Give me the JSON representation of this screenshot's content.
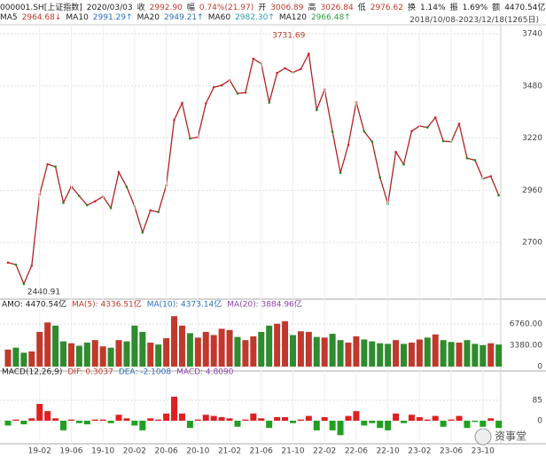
{
  "header": {
    "line1": [
      "000001.SH[上证指数]",
      "2020/03/03",
      "收",
      "2992.90",
      "幅",
      "0.74%(21.97)",
      "开",
      "3006.89",
      "高",
      "3026.84",
      "低",
      "2976.62",
      "换",
      "1.14%",
      "振",
      "1.69%",
      "额",
      "4470.54亿"
    ],
    "ma": [
      {
        "name": "MA5",
        "label": "2964.68↓",
        "color": "#c0392b"
      },
      {
        "name": "MA10",
        "label": "2991.29↑",
        "color": "#2c6fbb"
      },
      {
        "name": "MA20",
        "label": "2949.21↑",
        "color": "#2c6fbb"
      },
      {
        "name": "MA60",
        "label": "2982.30↑",
        "color": "#2c9bb0"
      },
      {
        "name": "MA120",
        "label": "2966.48↑",
        "color": "#2e9e3e"
      }
    ],
    "range": "2018/10/08-2023/12/18(1265日)",
    "watermark": "资事堂"
  },
  "chart_data": [
    {
      "type": "line",
      "color": "#b22222",
      "categories": [
        null,
        null,
        null,
        null,
        "19-02",
        null,
        null,
        null,
        "19-06",
        null,
        null,
        null,
        "19-10",
        null,
        null,
        null,
        "20-02",
        null,
        null,
        null,
        "20-06",
        null,
        null,
        null,
        "20-10",
        null,
        null,
        null,
        "21-02",
        null,
        null,
        null,
        "21-06",
        null,
        null,
        null,
        "21-10",
        null,
        null,
        null,
        "22-02",
        null,
        null,
        null,
        "22-06",
        null,
        null,
        null,
        "22-10",
        null,
        null,
        null,
        "23-02",
        null,
        null,
        null,
        "23-06",
        null,
        null,
        null,
        "23-10",
        null,
        null
      ],
      "values": [
        2600,
        2590,
        2494,
        2585,
        2940,
        3090,
        3078,
        2898,
        2979,
        2932,
        2886,
        2905,
        2929,
        2872,
        3050,
        2977,
        2880,
        2750,
        2860,
        2852,
        2985,
        3310,
        3395,
        3218,
        3225,
        3392,
        3473,
        3483,
        3509,
        3442,
        3447,
        3615,
        3591,
        3397,
        3544,
        3568,
        3547,
        3564,
        3640,
        3361,
        3462,
        3252,
        3047,
        3186,
        3399,
        3253,
        3202,
        3024,
        2893,
        3151,
        3089,
        3255,
        3280,
        3273,
        3323,
        3205,
        3202,
        3291,
        3120,
        3110,
        3018,
        3030,
        2935
      ],
      "ylim": [
        2427,
        3784
      ],
      "yticks": [
        2700,
        2960,
        3220,
        3480,
        3740
      ],
      "annotations": [
        {
          "value": 3731.69,
          "label": "3731.69"
        },
        {
          "value": 2440.91,
          "label": "2440.91"
        }
      ]
    },
    {
      "type": "bar",
      "legend": [
        "AMO: 4470.54亿",
        "MA(5): 4336.51亿",
        "MA(10): 4373.14亿",
        "MA(20): 3884.96亿"
      ],
      "values": [
        2700,
        3000,
        2200,
        2400,
        5500,
        7000,
        6500,
        4000,
        3700,
        3300,
        3800,
        4200,
        3200,
        3000,
        4200,
        4000,
        6500,
        5500,
        3800,
        3500,
        4500,
        8000,
        6500,
        5300,
        4600,
        5500,
        5000,
        6000,
        5800,
        4700,
        4200,
        4800,
        5500,
        6500,
        6800,
        7200,
        5000,
        5600,
        5500,
        4700,
        4600,
        5200,
        4200,
        3800,
        4800,
        4300,
        4000,
        3700,
        3600,
        4200,
        3600,
        3800,
        4300,
        4600,
        5100,
        4200,
        3900,
        3800,
        4200,
        3600,
        3400,
        3700,
        3500
      ],
      "ylim": [
        0,
        8590
      ],
      "yticks": [
        0,
        {
          "value": 3380,
          "label": "3380.00"
        },
        {
          "value": 6760,
          "label": "6760.00"
        }
      ]
    },
    {
      "type": "bar",
      "legend": [
        "MACD(12,26,9)",
        "DIF: 0.3037",
        "DEA: -2.1008",
        "MACD: 4.8090"
      ],
      "values": [
        -20,
        5,
        -15,
        10,
        70,
        40,
        10,
        -40,
        5,
        -10,
        -15,
        5,
        5,
        -10,
        25,
        10,
        -20,
        -40,
        10,
        5,
        30,
        100,
        30,
        -30,
        5,
        25,
        20,
        15,
        10,
        -25,
        5,
        30,
        10,
        -30,
        15,
        15,
        -10,
        5,
        20,
        -40,
        15,
        -40,
        -60,
        20,
        40,
        -20,
        -10,
        -30,
        -40,
        30,
        -10,
        25,
        15,
        5,
        20,
        -25,
        5,
        20,
        -30,
        -5,
        -25,
        10,
        -30
      ],
      "ylim": [
        -96,
        170
      ],
      "yticks": [
        0,
        85
      ]
    }
  ]
}
